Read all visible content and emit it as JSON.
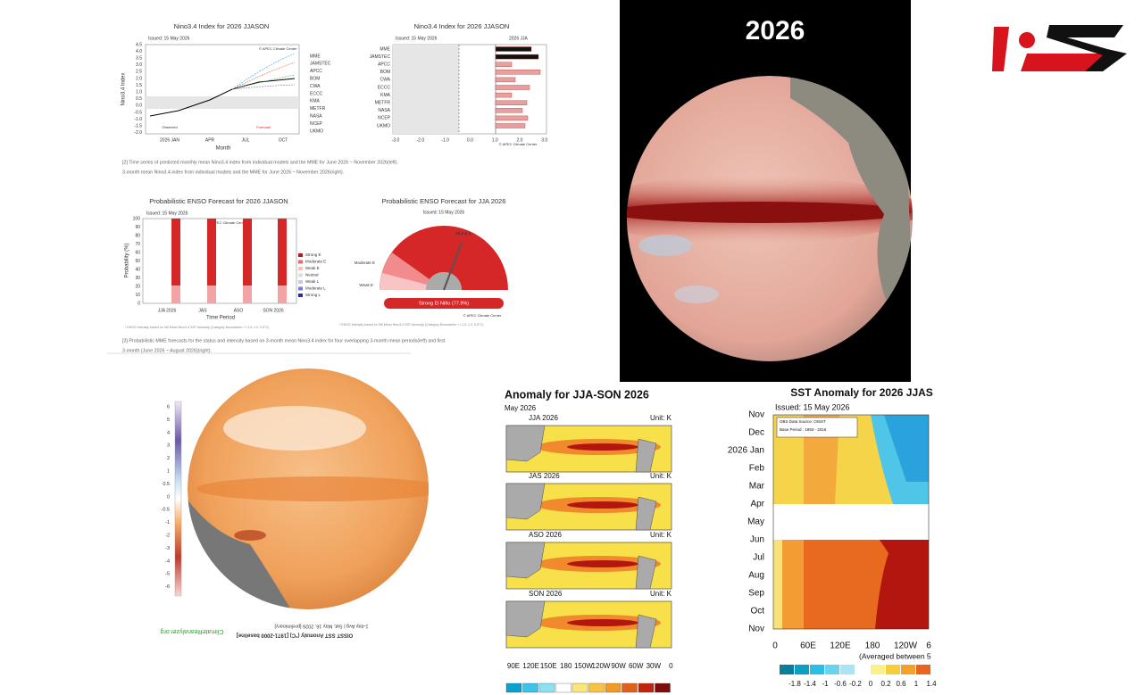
{
  "nino_ts": {
    "title": "Nino3.4 Index for 2026 JJASON",
    "issued": "Issued: 15 May 2026",
    "y_label": "Nino3.4 Index",
    "yticks": [
      "4.5",
      "4.0",
      "3.5",
      "3.0",
      "2.5",
      "2.0",
      "1.5",
      "1.0",
      "0.5",
      "0.0",
      "-0.5",
      "-1.0",
      "-1.5",
      "-2.0"
    ],
    "xticks": [
      "2026 JAN",
      "APR",
      "JUL",
      "OCT"
    ],
    "x_label": "Month",
    "observed": "Observed",
    "forecast": "Forecast",
    "credit": "© APEC Climate Center",
    "models": [
      "MME",
      "JAMSTEC",
      "APCC",
      "BOM",
      "CWA",
      "ECCC",
      "KMA",
      "METFR",
      "NASA",
      "NCEP",
      "UKMO"
    ]
  },
  "nino_bar": {
    "title": "Nino3.4 Index for 2026 JJASON",
    "issued": "Issued: 15 May 2026",
    "period": "2026 JJA",
    "models": [
      "MME",
      "JAMSTEC",
      "APCC",
      "BOM",
      "CWA",
      "ECCC",
      "KMA",
      "METFR",
      "NASA",
      "NCEP",
      "UKMO"
    ],
    "xticks": [
      "-3.0",
      "-2.0",
      "-1.0",
      "0.0",
      "1.0",
      "2.0",
      "3.0"
    ],
    "credit": "© APEC Climate Center"
  },
  "caption1": [
    "[2] Time series of predicted monthly mean Nino3.4 index from individual models and the MME for June 2026 ~ November 2026(left).",
    "3-month mean Nino3.4 index from individual models and the MME for June 2026 ~ November 2026(right)."
  ],
  "prob_bar": {
    "title": "Probabilistic ENSO Forecast for 2026 JJASON",
    "issued": "Issued: 15 May 2026",
    "credit": "© APEC Climate Center",
    "y_label": "Probability (%)",
    "yticks": [
      "100",
      "90",
      "80",
      "70",
      "60",
      "50",
      "40",
      "30",
      "20",
      "10",
      "0"
    ],
    "categories": [
      "JJA 2026",
      "JAS",
      "ASO",
      "SON 2026"
    ],
    "x_label": "Time Period",
    "legend": [
      "Strong E",
      "Moderate E",
      "Weak E",
      "Neutral",
      "Weak L",
      "Moderate L",
      "Strong L"
    ],
    "note": "* ENSO Intensity based on 3M Mean Nino3.4 SST Anomaly (Category Boundaries: +/-1.5, 1.0, 0.5°C)"
  },
  "gauge": {
    "title": "Probabilistic ENSO Forecast for JJA 2026",
    "issued": "Issued: 15 May 2026",
    "labels": [
      "Strong E",
      "Moderate E",
      "Weak E"
    ],
    "result": "Strong El Niño (77.9%)",
    "credit": "© APEC Climate Center",
    "note": "* ENSO Intensity based on 3M Mean Nino3.4 SST Anomaly (Category Boundaries: +/-1.5, 1.0, 0.5°C)"
  },
  "caption2": [
    "[3] Probabilistic MME forecasts for the status and intensity based on 3-month mean Nino3.4 index for four overlapping 3-month mean periods(left) and first",
    "3-month (June 2026 ~ August 2026)(right)."
  ],
  "globe_year": "2026",
  "oisst": {
    "colorbar": [
      "6",
      "5",
      "4",
      "3",
      "2",
      "1",
      "0.5",
      "0",
      "-0.5",
      "-1",
      "-2",
      "-3",
      "-4",
      "-5",
      "-6"
    ],
    "caption": "OISST SST Anomaly (°C) [1971-2000 baseline]",
    "date": "1-day Avg | Sat, May 16, 2026 [preliminary]",
    "source": "ClimateReanalyzer.org"
  },
  "maps": {
    "title": "Anomaly for JJA-SON 2026",
    "issued": "May 2026",
    "panels": [
      "JJA 2026",
      "JAS 2026",
      "ASO 2026",
      "SON 2026"
    ],
    "unit": "Unit: K",
    "xticks": [
      "90E",
      "120E",
      "150E",
      "180",
      "150W",
      "120W",
      "90W",
      "60W",
      "30W",
      "0"
    ]
  },
  "hov": {
    "title": "SST Anomaly for 2026 JJAS",
    "issued": "Issued: 15 May 2026",
    "source": "OBS Data Source: OISST",
    "base": "Base Period : 1993 - 2016",
    "months": [
      "Nov",
      "Dec",
      "2026 Jan",
      "Feb",
      "Mar",
      "Apr",
      "May",
      "Jun",
      "Jul",
      "Aug",
      "Sep",
      "Oct",
      "Nov"
    ],
    "xticks": [
      "0",
      "60E",
      "120E",
      "180",
      "120W",
      "6"
    ],
    "note": "(Averaged between 5",
    "colorbar": [
      "-1.8",
      "-1.4",
      "-1",
      "-0.6",
      "-0.2",
      "0",
      "0.2",
      "0.6",
      "1",
      "1.4"
    ]
  }
}
